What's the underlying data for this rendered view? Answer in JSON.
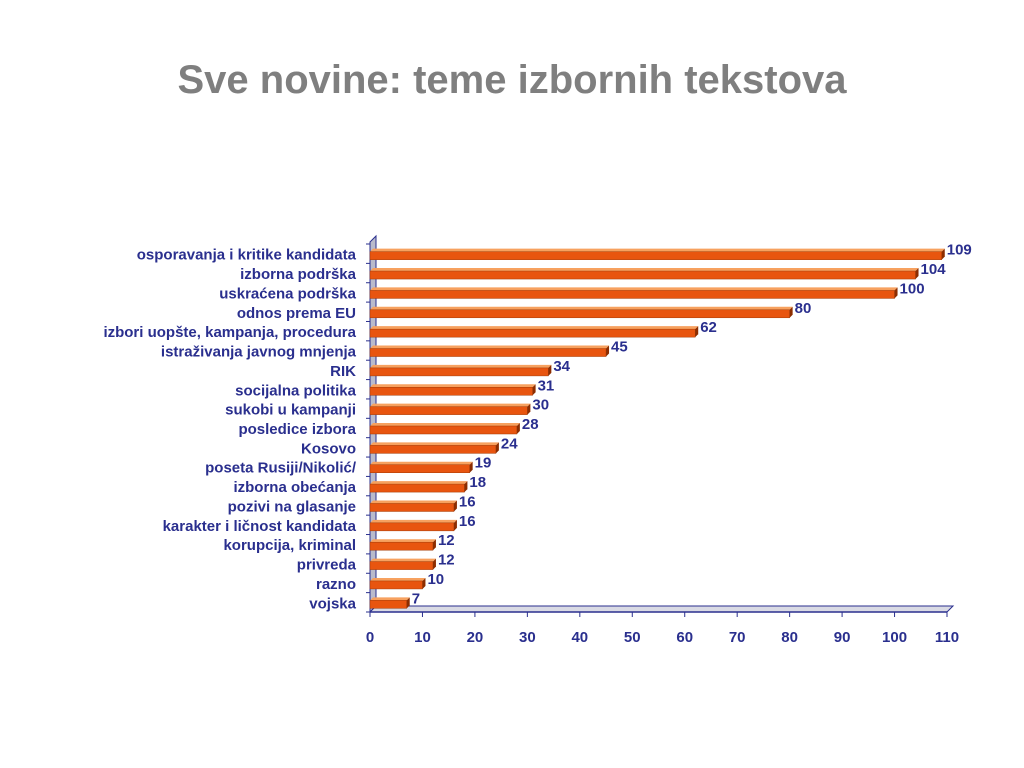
{
  "title": "Sve novine: teme izbornih tekstova",
  "colors": {
    "bar_face": "#e8550f",
    "bar_top": "#f7a15f",
    "bar_side": "#8c2d00",
    "wall": "#b9bbcc",
    "axis": "#2a2f8e",
    "text": "#2a2f8e",
    "title": "#7f7f7f"
  },
  "chart_data": {
    "type": "bar",
    "orientation": "horizontal",
    "style": "3d",
    "title": "",
    "xlabel": "",
    "ylabel": "",
    "xlim": [
      0,
      110
    ],
    "xticks": [
      0,
      10,
      20,
      30,
      40,
      50,
      60,
      70,
      80,
      90,
      100,
      110
    ],
    "grid": false,
    "legend": "none",
    "categories": [
      "osporavanja i kritike kandidata",
      "izborna podrška",
      "uskraćena podrška",
      "odnos prema EU",
      "izbori uopšte, kampanja, procedura",
      "istraživanja javnog mnjenja",
      "RIK",
      "socijalna politika",
      "sukobi u kampanji",
      "posledice izbora",
      "Kosovo",
      "poseta Rusiji/Nikolić/",
      "izborna obećanja",
      "pozivi na glasanje",
      "karakter i ličnost kandidata",
      "korupcija, kriminal",
      "privreda",
      "razno",
      "vojska"
    ],
    "values": [
      109,
      104,
      100,
      80,
      62,
      45,
      34,
      31,
      30,
      28,
      24,
      19,
      18,
      16,
      16,
      12,
      12,
      10,
      7
    ],
    "value_labels": [
      "109",
      "104",
      "100",
      "80",
      "62",
      "45",
      "34",
      "31",
      "30",
      "28",
      "24",
      "19",
      "18",
      "16",
      "16",
      "12",
      "12",
      "10",
      "7"
    ]
  }
}
